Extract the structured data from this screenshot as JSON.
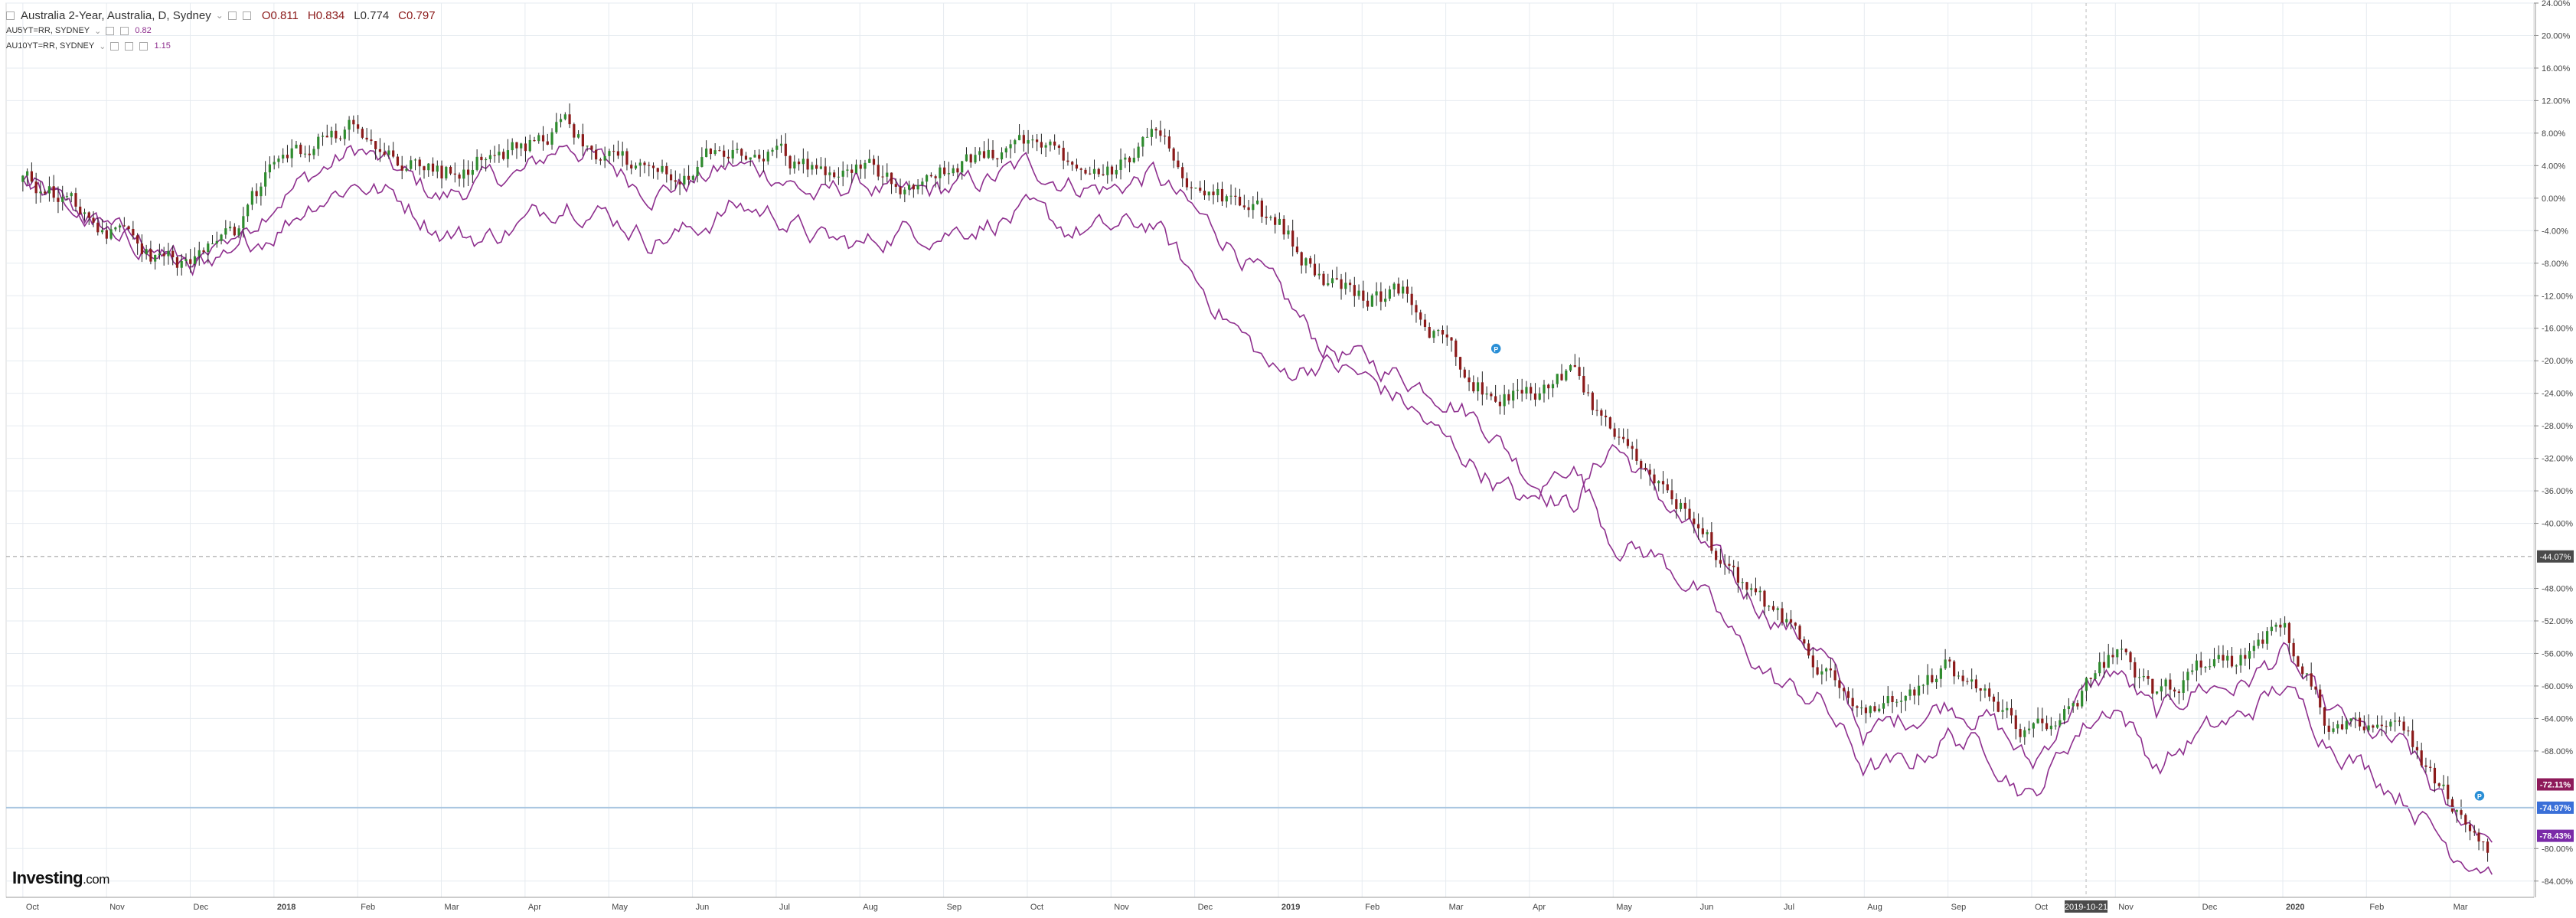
{
  "legend": {
    "main_title": "Australia 2-Year, Australia, D, Sydney",
    "dropdown_glyph": "⌄",
    "ohlc": {
      "o": "O0.811",
      "h": "H0.834",
      "l": "L0.774",
      "c": "C0.797"
    },
    "series1_label": "AU5YT=RR, SYDNEY",
    "series1_value": "0.82",
    "series2_label": "AU10YT=RR, SYDNEY",
    "series2_value": "1.15"
  },
  "logo": {
    "name": "Investing",
    "suffix": ".com"
  },
  "colors": {
    "background": "#ffffff",
    "grid": "#e6ebf0",
    "axis": "#666666",
    "up_candle": "#2e8b2e",
    "down_candle": "#8b1a1a",
    "compare_lines": "#8e2f8e",
    "crosshair": "#a9c6e0",
    "marker": "#2a8fd6"
  },
  "chart_data": {
    "type": "candlestick",
    "title": "Australia 2-Year, Australia, D, Sydney",
    "y_axis": {
      "unit": "percent change",
      "range": [
        -86,
        24
      ],
      "ticks": [
        "24.00%",
        "20.00%",
        "16.00%",
        "12.00%",
        "8.00%",
        "4.00%",
        "0.00%",
        "-4.00%",
        "-8.00%",
        "-12.00%",
        "-16.00%",
        "-20.00%",
        "-24.00%",
        "-28.00%",
        "-32.00%",
        "-36.00%",
        "-40.00%",
        "-48.00%",
        "-52.00%",
        "-56.00%",
        "-60.00%",
        "-64.00%",
        "-68.00%",
        "-80.00%",
        "-84.00%"
      ],
      "tick_values": [
        24,
        20,
        16,
        12,
        8,
        4,
        0,
        -4,
        -8,
        -12,
        -16,
        -20,
        -24,
        -28,
        -32,
        -36,
        -40,
        -48,
        -52,
        -56,
        -60,
        -64,
        -68,
        -80,
        -84
      ]
    },
    "x_axis": {
      "labels": [
        "Oct",
        "Nov",
        "Dec",
        "2018",
        "Feb",
        "Mar",
        "Apr",
        "May",
        "Jun",
        "Jul",
        "Aug",
        "Sep",
        "Oct",
        "Nov",
        "Dec",
        "2019",
        "Feb",
        "Mar",
        "Apr",
        "May",
        "Jun",
        "Jul",
        "Aug",
        "Sep",
        "Oct",
        "Nov",
        "Dec",
        "2020",
        "Feb",
        "Mar"
      ],
      "label_months": [
        0,
        1,
        2,
        3,
        4,
        5,
        6,
        7,
        8,
        9,
        10,
        11,
        12,
        13,
        14,
        15,
        16,
        17,
        18,
        19,
        20,
        21,
        22,
        23,
        24,
        25,
        26,
        27,
        28,
        29
      ],
      "range_months": [
        -0.2,
        30.0
      ],
      "crosshair_date_label": "2019-10-21",
      "crosshair_month": 24.65
    },
    "horizontal_line": {
      "value": -44.07,
      "label": "-44.07%"
    },
    "price_badges": [
      {
        "value": -72.11,
        "label": "-72.11%",
        "color": "#8e1a5a"
      },
      {
        "value": -74.97,
        "label": "-74.97%",
        "color": "#3a6fd8"
      },
      {
        "value": -78.43,
        "label": "-78.43%",
        "color": "#7a2aa8"
      }
    ],
    "grid": true,
    "series": [
      {
        "name": "Australia 2-Year",
        "style": "candlestick",
        "anchors_month": [
          0,
          0.5,
          1,
          1.5,
          2,
          2.5,
          3,
          3.5,
          4,
          4.5,
          5,
          5.5,
          6,
          6.5,
          7,
          7.5,
          8,
          8.5,
          9,
          9.5,
          10,
          10.5,
          11,
          11.5,
          12,
          12.5,
          13,
          13.5,
          14,
          14.5,
          15,
          15.5,
          16,
          16.5,
          17,
          17.5,
          18,
          18.5,
          19,
          19.5,
          20,
          20.5,
          21,
          21.5,
          22,
          22.5,
          23,
          23.5,
          24,
          24.5,
          25,
          25.5,
          26,
          26.5,
          27,
          27.5,
          28,
          28.5,
          29,
          29.5
        ],
        "anchors_value": [
          2,
          0,
          -4,
          -7,
          -8,
          -5,
          4,
          7,
          9,
          5,
          3,
          5,
          6,
          9,
          5,
          3,
          4,
          6,
          5,
          3,
          4,
          2,
          3,
          5,
          7,
          5,
          4,
          7,
          2,
          -1,
          -3,
          -10,
          -12,
          -12,
          -18,
          -24,
          -24,
          -22,
          -30,
          -34,
          -40,
          -48,
          -52,
          -58,
          -64,
          -62,
          -58,
          -62,
          -66,
          -62,
          -56,
          -62,
          -58,
          -57,
          -52,
          -64,
          -64,
          -67,
          -74,
          -80
        ]
      },
      {
        "name": "AU5YT=RR, SYDNEY",
        "style": "line",
        "anchors_month": [
          0,
          0.5,
          1,
          1.5,
          2,
          2.5,
          3,
          3.5,
          4,
          4.5,
          5,
          5.5,
          6,
          6.5,
          7,
          7.5,
          8,
          8.5,
          9,
          9.5,
          10,
          10.5,
          11,
          11.5,
          12,
          12.5,
          13,
          13.5,
          14,
          14.5,
          15,
          15.5,
          16,
          16.5,
          17,
          17.5,
          18,
          18.5,
          19,
          19.5,
          20,
          20.5,
          21,
          21.5,
          22,
          22.5,
          23,
          23.5,
          24,
          24.5,
          25,
          25.5,
          26,
          26.5,
          27,
          27.5,
          28,
          28.5,
          29,
          29.5
        ],
        "anchors_value": [
          2,
          -1,
          -4,
          -6,
          -9,
          -6,
          0,
          3,
          6,
          3,
          0,
          2,
          3,
          7,
          4,
          1,
          2,
          4,
          3,
          0,
          2,
          0,
          1,
          2,
          4,
          2,
          1,
          3,
          -2,
          -6,
          -12,
          -18,
          -20,
          -22,
          -24,
          -28,
          -34,
          -38,
          -30,
          -36,
          -42,
          -48,
          -52,
          -56,
          -66,
          -64,
          -62,
          -64,
          -70,
          -62,
          -58,
          -64,
          -60,
          -60,
          -56,
          -63,
          -66,
          -68,
          -76,
          -78
        ]
      },
      {
        "name": "AU10YT=RR, SYDNEY",
        "style": "line",
        "anchors_month": [
          0,
          0.5,
          1,
          1.5,
          2,
          2.5,
          3,
          3.5,
          4,
          4.5,
          5,
          5.5,
          6,
          6.5,
          7,
          7.5,
          8,
          8.5,
          9,
          9.5,
          10,
          10.5,
          11,
          11.5,
          12,
          12.5,
          13,
          13.5,
          14,
          14.5,
          15,
          15.5,
          16,
          16.5,
          17,
          17.5,
          18,
          18.5,
          19,
          19.5,
          20,
          20.5,
          21,
          21.5,
          22,
          22.5,
          23,
          23.5,
          24,
          24.5,
          25,
          25.5,
          26,
          26.5,
          27,
          27.5,
          28,
          28.5,
          29,
          29.5
        ],
        "anchors_value": [
          2,
          -1,
          -4,
          -6,
          -8,
          -7,
          -4,
          0,
          2,
          0,
          -4,
          -5,
          -3,
          0,
          -2,
          -5,
          -4,
          -1,
          -2,
          -5,
          -6,
          -4,
          -4,
          -3,
          -2,
          -4,
          -4,
          -3,
          -10,
          -16,
          -22,
          -20,
          -22,
          -25,
          -30,
          -34,
          -38,
          -32,
          -42,
          -44,
          -48,
          -55,
          -60,
          -62,
          -70,
          -70,
          -66,
          -68,
          -74,
          -66,
          -62,
          -70,
          -66,
          -64,
          -60,
          -66,
          -70,
          -74,
          -80,
          -82
        ]
      }
    ],
    "markers": [
      {
        "month": 17.6,
        "value": -18.5,
        "glyph": "P"
      },
      {
        "month": 29.35,
        "value": -73.5,
        "glyph": "P"
      }
    ]
  }
}
